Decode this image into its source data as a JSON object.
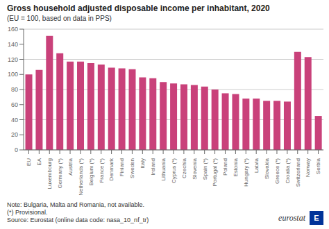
{
  "chart_data": {
    "type": "bar",
    "title": "Gross household adjusted disposable income per inhabitant, 2020",
    "subtitle": "(EU = 100, based on data in PPS)",
    "categories": [
      "EU",
      "EA",
      "Luxembourg",
      "Germany (*)",
      "Austria",
      "Netherlands (*)",
      "Belgium (*)",
      "France (*)",
      "Denmark",
      "Finland",
      "Sweden",
      "Italy",
      "Ireland",
      "Lithuania",
      "Cyprus (*)",
      "Czechia",
      "Slovenia",
      "Spain (*)",
      "Portugal (*)",
      "Poland",
      "Estonia",
      "Hungary (*)",
      "Latvia",
      "Slovakia",
      "Greece (*)",
      "Croatia (*)",
      "Switzerland",
      "Norway",
      "Serbia"
    ],
    "values": [
      100,
      106,
      151,
      128,
      117,
      117,
      115,
      113,
      109,
      108,
      107,
      96,
      95,
      90,
      88,
      87,
      86,
      84,
      80,
      75,
      74,
      68,
      68,
      65,
      65,
      64,
      130,
      123,
      45
    ],
    "color": "#c9417a",
    "ylim": [
      0,
      160
    ],
    "yticks": [
      0,
      20,
      40,
      60,
      80,
      100,
      120,
      140,
      160
    ],
    "grid": true,
    "annotations": [
      "Note: Bulgaria, Malta and Romania, not available.",
      "(*) Provisional.",
      "Source: Eurostat (online data code: nasa_10_nf_tr)",
      "eurostat",
      "E"
    ]
  }
}
